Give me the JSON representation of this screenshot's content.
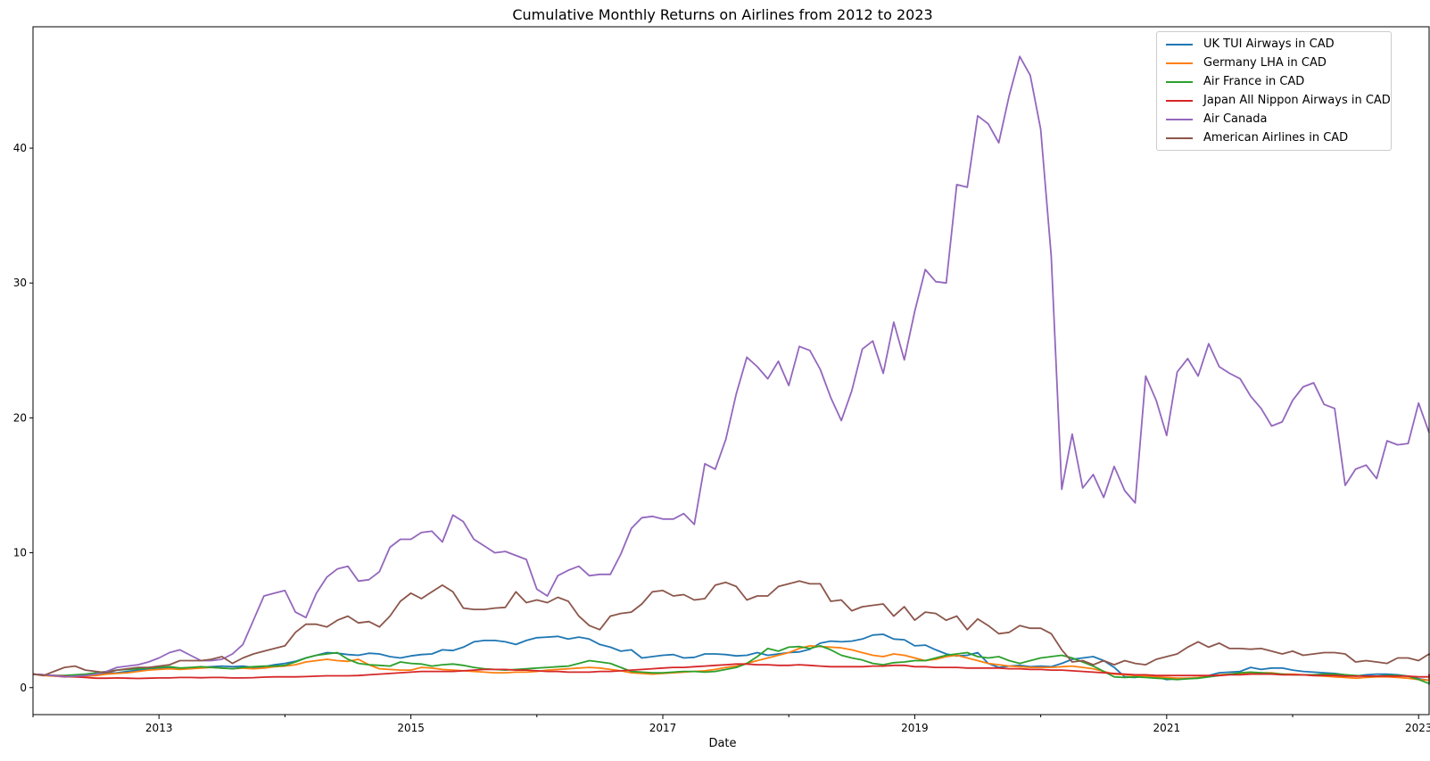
{
  "chart_data": {
    "type": "line",
    "title": "Cumulative Monthly Returns on Airlines from 2012 to 2023",
    "xlabel": "Date",
    "ylabel": "",
    "xlim": [
      "2012-01",
      "2023-02"
    ],
    "ylim": [
      -2,
      49
    ],
    "x_ticks": [
      "2013",
      "2015",
      "2017",
      "2019",
      "2021",
      "2023"
    ],
    "y_ticks": [
      0,
      10,
      20,
      30,
      40
    ],
    "grid": false,
    "legend_position": "top-right",
    "x_start": "2012-01",
    "series": [
      {
        "name": "UK TUI Airways in CAD",
        "color": "#1f77b4",
        "values": [
          1.0,
          0.95,
          0.9,
          0.85,
          0.85,
          0.9,
          0.95,
          1.05,
          1.1,
          1.2,
          1.3,
          1.4,
          1.45,
          1.5,
          1.45,
          1.4,
          1.5,
          1.55,
          1.6,
          1.55,
          1.6,
          1.5,
          1.55,
          1.7,
          1.8,
          1.95,
          2.2,
          2.4,
          2.6,
          2.55,
          2.45,
          2.4,
          2.55,
          2.5,
          2.3,
          2.2,
          2.35,
          2.45,
          2.5,
          2.8,
          2.75,
          3.0,
          3.4,
          3.5,
          3.5,
          3.4,
          3.2,
          3.5,
          3.7,
          3.75,
          3.8,
          3.6,
          3.75,
          3.6,
          3.2,
          3.0,
          2.7,
          2.8,
          2.2,
          2.3,
          2.4,
          2.45,
          2.2,
          2.25,
          2.5,
          2.5,
          2.45,
          2.35,
          2.4,
          2.6,
          2.4,
          2.5,
          2.6,
          2.65,
          2.85,
          3.3,
          3.45,
          3.4,
          3.45,
          3.6,
          3.9,
          3.95,
          3.6,
          3.55,
          3.1,
          3.15,
          2.8,
          2.5,
          2.35,
          2.4,
          2.6,
          1.8,
          1.5,
          1.6,
          1.65,
          1.55,
          1.6,
          1.55,
          1.8,
          2.1,
          2.2,
          2.3,
          2.0,
          1.5,
          0.8,
          0.75,
          0.9,
          0.8,
          0.6,
          0.65,
          0.7,
          0.7,
          0.9,
          1.1,
          1.15,
          1.2,
          1.5,
          1.35,
          1.45,
          1.45,
          1.3,
          1.2,
          1.15,
          1.1,
          1.05,
          0.95,
          0.85,
          0.95,
          1.0,
          1.0,
          0.95,
          0.85,
          0.65,
          0.55,
          0.5,
          0.45,
          0.45,
          0.45,
          0.55,
          0.55,
          0.6,
          0.85
        ]
      },
      {
        "name": "Germany LHA in CAD",
        "color": "#ff7f0e",
        "values": [
          1.0,
          0.9,
          0.85,
          0.8,
          0.8,
          0.85,
          0.9,
          1.0,
          1.05,
          1.1,
          1.2,
          1.3,
          1.35,
          1.4,
          1.35,
          1.4,
          1.45,
          1.5,
          1.45,
          1.4,
          1.45,
          1.4,
          1.45,
          1.55,
          1.6,
          1.7,
          1.9,
          2.0,
          2.1,
          2.0,
          1.95,
          2.1,
          1.7,
          1.4,
          1.35,
          1.3,
          1.3,
          1.5,
          1.45,
          1.35,
          1.3,
          1.25,
          1.2,
          1.15,
          1.1,
          1.1,
          1.15,
          1.15,
          1.2,
          1.3,
          1.35,
          1.4,
          1.45,
          1.5,
          1.45,
          1.35,
          1.25,
          1.1,
          1.05,
          1.0,
          1.05,
          1.1,
          1.15,
          1.2,
          1.25,
          1.35,
          1.5,
          1.6,
          1.8,
          2.0,
          2.2,
          2.4,
          2.6,
          2.9,
          3.1,
          3.05,
          3.0,
          2.95,
          2.8,
          2.6,
          2.4,
          2.3,
          2.5,
          2.4,
          2.2,
          2.0,
          2.1,
          2.3,
          2.4,
          2.2,
          2.0,
          1.8,
          1.7,
          1.6,
          1.55,
          1.5,
          1.5,
          1.5,
          1.55,
          1.6,
          1.5,
          1.4,
          1.2,
          1.0,
          0.95,
          0.9,
          0.85,
          0.8,
          0.75,
          0.7,
          0.7,
          0.75,
          0.85,
          0.95,
          1.0,
          1.05,
          1.05,
          1.1,
          1.1,
          1.0,
          1.0,
          0.95,
          0.9,
          0.85,
          0.8,
          0.75,
          0.7,
          0.75,
          0.8,
          0.8,
          0.75,
          0.7,
          0.6,
          0.55,
          0.55,
          0.5,
          0.55,
          0.6,
          0.65,
          0.7,
          0.75,
          0.8
        ]
      },
      {
        "name": "Air France in CAD",
        "color": "#2ca02c",
        "values": [
          1.0,
          0.95,
          0.9,
          0.9,
          0.95,
          1.0,
          1.1,
          1.2,
          1.3,
          1.35,
          1.4,
          1.45,
          1.5,
          1.55,
          1.45,
          1.5,
          1.55,
          1.5,
          1.45,
          1.4,
          1.5,
          1.55,
          1.6,
          1.6,
          1.65,
          1.9,
          2.2,
          2.4,
          2.5,
          2.6,
          2.1,
          1.8,
          1.7,
          1.65,
          1.6,
          1.9,
          1.8,
          1.75,
          1.6,
          1.7,
          1.75,
          1.65,
          1.5,
          1.4,
          1.35,
          1.3,
          1.35,
          1.4,
          1.45,
          1.5,
          1.55,
          1.6,
          1.8,
          2.0,
          1.9,
          1.8,
          1.5,
          1.2,
          1.15,
          1.1,
          1.1,
          1.15,
          1.2,
          1.2,
          1.15,
          1.2,
          1.35,
          1.5,
          1.8,
          2.3,
          2.9,
          2.7,
          3.0,
          3.05,
          2.9,
          3.1,
          2.8,
          2.4,
          2.2,
          2.05,
          1.8,
          1.7,
          1.85,
          1.9,
          2.0,
          2.0,
          2.2,
          2.4,
          2.5,
          2.6,
          2.3,
          2.2,
          2.3,
          2.0,
          1.8,
          2.0,
          2.2,
          2.3,
          2.4,
          2.2,
          1.9,
          1.6,
          1.2,
          0.8,
          0.75,
          0.8,
          0.75,
          0.7,
          0.65,
          0.6,
          0.65,
          0.7,
          0.8,
          0.9,
          1.0,
          1.1,
          1.15,
          1.1,
          1.05,
          1.0,
          0.95,
          0.95,
          0.95,
          1.0,
          1.0,
          0.95,
          0.9,
          0.85,
          0.85,
          0.9,
          0.9,
          0.85,
          0.6,
          0.3,
          0.25,
          0.25,
          0.25,
          0.3,
          0.3,
          0.3,
          0.35,
          0.4
        ]
      },
      {
        "name": "Japan All Nippon Airways in CAD",
        "color": "#d62728",
        "values": [
          1.0,
          0.95,
          0.9,
          0.85,
          0.8,
          0.75,
          0.7,
          0.7,
          0.72,
          0.7,
          0.68,
          0.7,
          0.72,
          0.72,
          0.75,
          0.75,
          0.73,
          0.75,
          0.75,
          0.72,
          0.72,
          0.74,
          0.78,
          0.8,
          0.8,
          0.8,
          0.82,
          0.85,
          0.88,
          0.88,
          0.88,
          0.9,
          0.95,
          1.0,
          1.05,
          1.1,
          1.15,
          1.2,
          1.2,
          1.2,
          1.2,
          1.25,
          1.3,
          1.35,
          1.35,
          1.35,
          1.3,
          1.3,
          1.25,
          1.2,
          1.2,
          1.15,
          1.15,
          1.15,
          1.2,
          1.2,
          1.25,
          1.3,
          1.35,
          1.4,
          1.45,
          1.5,
          1.5,
          1.55,
          1.6,
          1.65,
          1.7,
          1.75,
          1.75,
          1.7,
          1.7,
          1.65,
          1.65,
          1.7,
          1.65,
          1.6,
          1.55,
          1.55,
          1.55,
          1.55,
          1.6,
          1.6,
          1.65,
          1.65,
          1.55,
          1.55,
          1.5,
          1.5,
          1.5,
          1.45,
          1.45,
          1.45,
          1.45,
          1.4,
          1.4,
          1.35,
          1.35,
          1.3,
          1.3,
          1.25,
          1.2,
          1.15,
          1.1,
          1.05,
          1.0,
          0.95,
          0.95,
          0.9,
          0.9,
          0.9,
          0.9,
          0.9,
          0.9,
          0.9,
          0.95,
          0.95,
          1.0,
          1.0,
          1.0,
          0.95,
          0.95,
          0.95,
          0.9,
          0.9,
          0.9,
          0.85,
          0.85,
          0.85,
          0.85,
          0.85,
          0.85,
          0.85,
          0.8,
          0.8,
          0.8,
          0.8,
          0.8,
          0.85,
          0.85,
          0.9,
          0.95,
          1.0
        ]
      },
      {
        "name": "Air Canada",
        "color": "#9467bd",
        "values": [
          1.0,
          0.95,
          0.9,
          0.8,
          0.85,
          0.9,
          1.0,
          1.2,
          1.5,
          1.6,
          1.7,
          1.9,
          2.2,
          2.6,
          2.8,
          2.4,
          2.0,
          2.0,
          2.1,
          2.5,
          3.2,
          5.0,
          6.8,
          7.0,
          7.2,
          5.6,
          5.2,
          7.0,
          8.2,
          8.8,
          9.0,
          7.9,
          8.0,
          8.6,
          10.4,
          11.0,
          11.0,
          11.5,
          11.6,
          10.8,
          12.8,
          12.3,
          11.0,
          10.5,
          10.0,
          10.1,
          9.8,
          9.5,
          7.3,
          6.8,
          8.3,
          8.7,
          9.0,
          8.3,
          8.4,
          8.4,
          9.9,
          11.8,
          12.6,
          12.7,
          12.5,
          12.5,
          12.9,
          12.1,
          16.6,
          16.2,
          18.4,
          21.8,
          24.5,
          23.8,
          22.9,
          24.2,
          22.4,
          25.3,
          25.0,
          23.6,
          21.5,
          19.8,
          22.0,
          25.1,
          25.7,
          23.3,
          27.1,
          24.3,
          27.9,
          31.0,
          30.1,
          30.0,
          37.3,
          37.1,
          42.4,
          41.8,
          40.4,
          43.9,
          46.8,
          45.4,
          41.4,
          32.0,
          14.7,
          18.8,
          14.8,
          15.8,
          14.1,
          16.4,
          14.6,
          13.7,
          23.1,
          21.3,
          18.7,
          23.4,
          24.4,
          23.1,
          25.5,
          23.8,
          23.3,
          22.9,
          21.6,
          20.7,
          19.4,
          19.7,
          21.3,
          22.3,
          22.6,
          21.0,
          20.7,
          15.0,
          16.2,
          16.5,
          15.5,
          18.3,
          18.0,
          18.1,
          21.1,
          18.9
        ]
      },
      {
        "name": "American Airlines in CAD",
        "color": "#8c564b",
        "values": [
          1.0,
          0.9,
          1.2,
          1.5,
          1.6,
          1.3,
          1.2,
          1.1,
          1.3,
          1.4,
          1.5,
          1.5,
          1.6,
          1.7,
          2.0,
          2.0,
          2.0,
          2.1,
          2.3,
          1.8,
          2.2,
          2.5,
          2.7,
          2.9,
          3.1,
          4.1,
          4.7,
          4.7,
          4.5,
          5.0,
          5.3,
          4.8,
          4.9,
          4.5,
          5.3,
          6.4,
          7.0,
          6.6,
          7.1,
          7.6,
          7.1,
          5.9,
          5.8,
          5.8,
          5.9,
          5.95,
          7.1,
          6.3,
          6.5,
          6.3,
          6.7,
          6.4,
          5.3,
          4.6,
          4.3,
          5.3,
          5.5,
          5.6,
          6.2,
          7.1,
          7.2,
          6.8,
          6.9,
          6.5,
          6.6,
          7.6,
          7.8,
          7.5,
          6.5,
          6.8,
          6.8,
          7.5,
          7.7,
          7.9,
          7.7,
          7.7,
          6.4,
          6.5,
          5.7,
          6.0,
          6.1,
          6.2,
          5.3,
          6.0,
          5.0,
          5.6,
          5.5,
          5.0,
          5.3,
          4.3,
          5.1,
          4.6,
          4.0,
          4.1,
          4.6,
          4.4,
          4.4,
          4.0,
          2.8,
          1.9,
          2.0,
          1.7,
          2.0,
          1.7,
          2.0,
          1.8,
          1.7,
          2.1,
          2.3,
          2.5,
          3.0,
          3.4,
          3.0,
          3.3,
          2.9,
          2.9,
          2.85,
          2.9,
          2.7,
          2.5,
          2.7,
          2.4,
          2.5,
          2.6,
          2.6,
          2.5,
          1.9,
          2.0,
          1.9,
          1.8,
          2.2,
          2.2,
          2.0,
          2.5,
          2.4
        ]
      }
    ]
  }
}
